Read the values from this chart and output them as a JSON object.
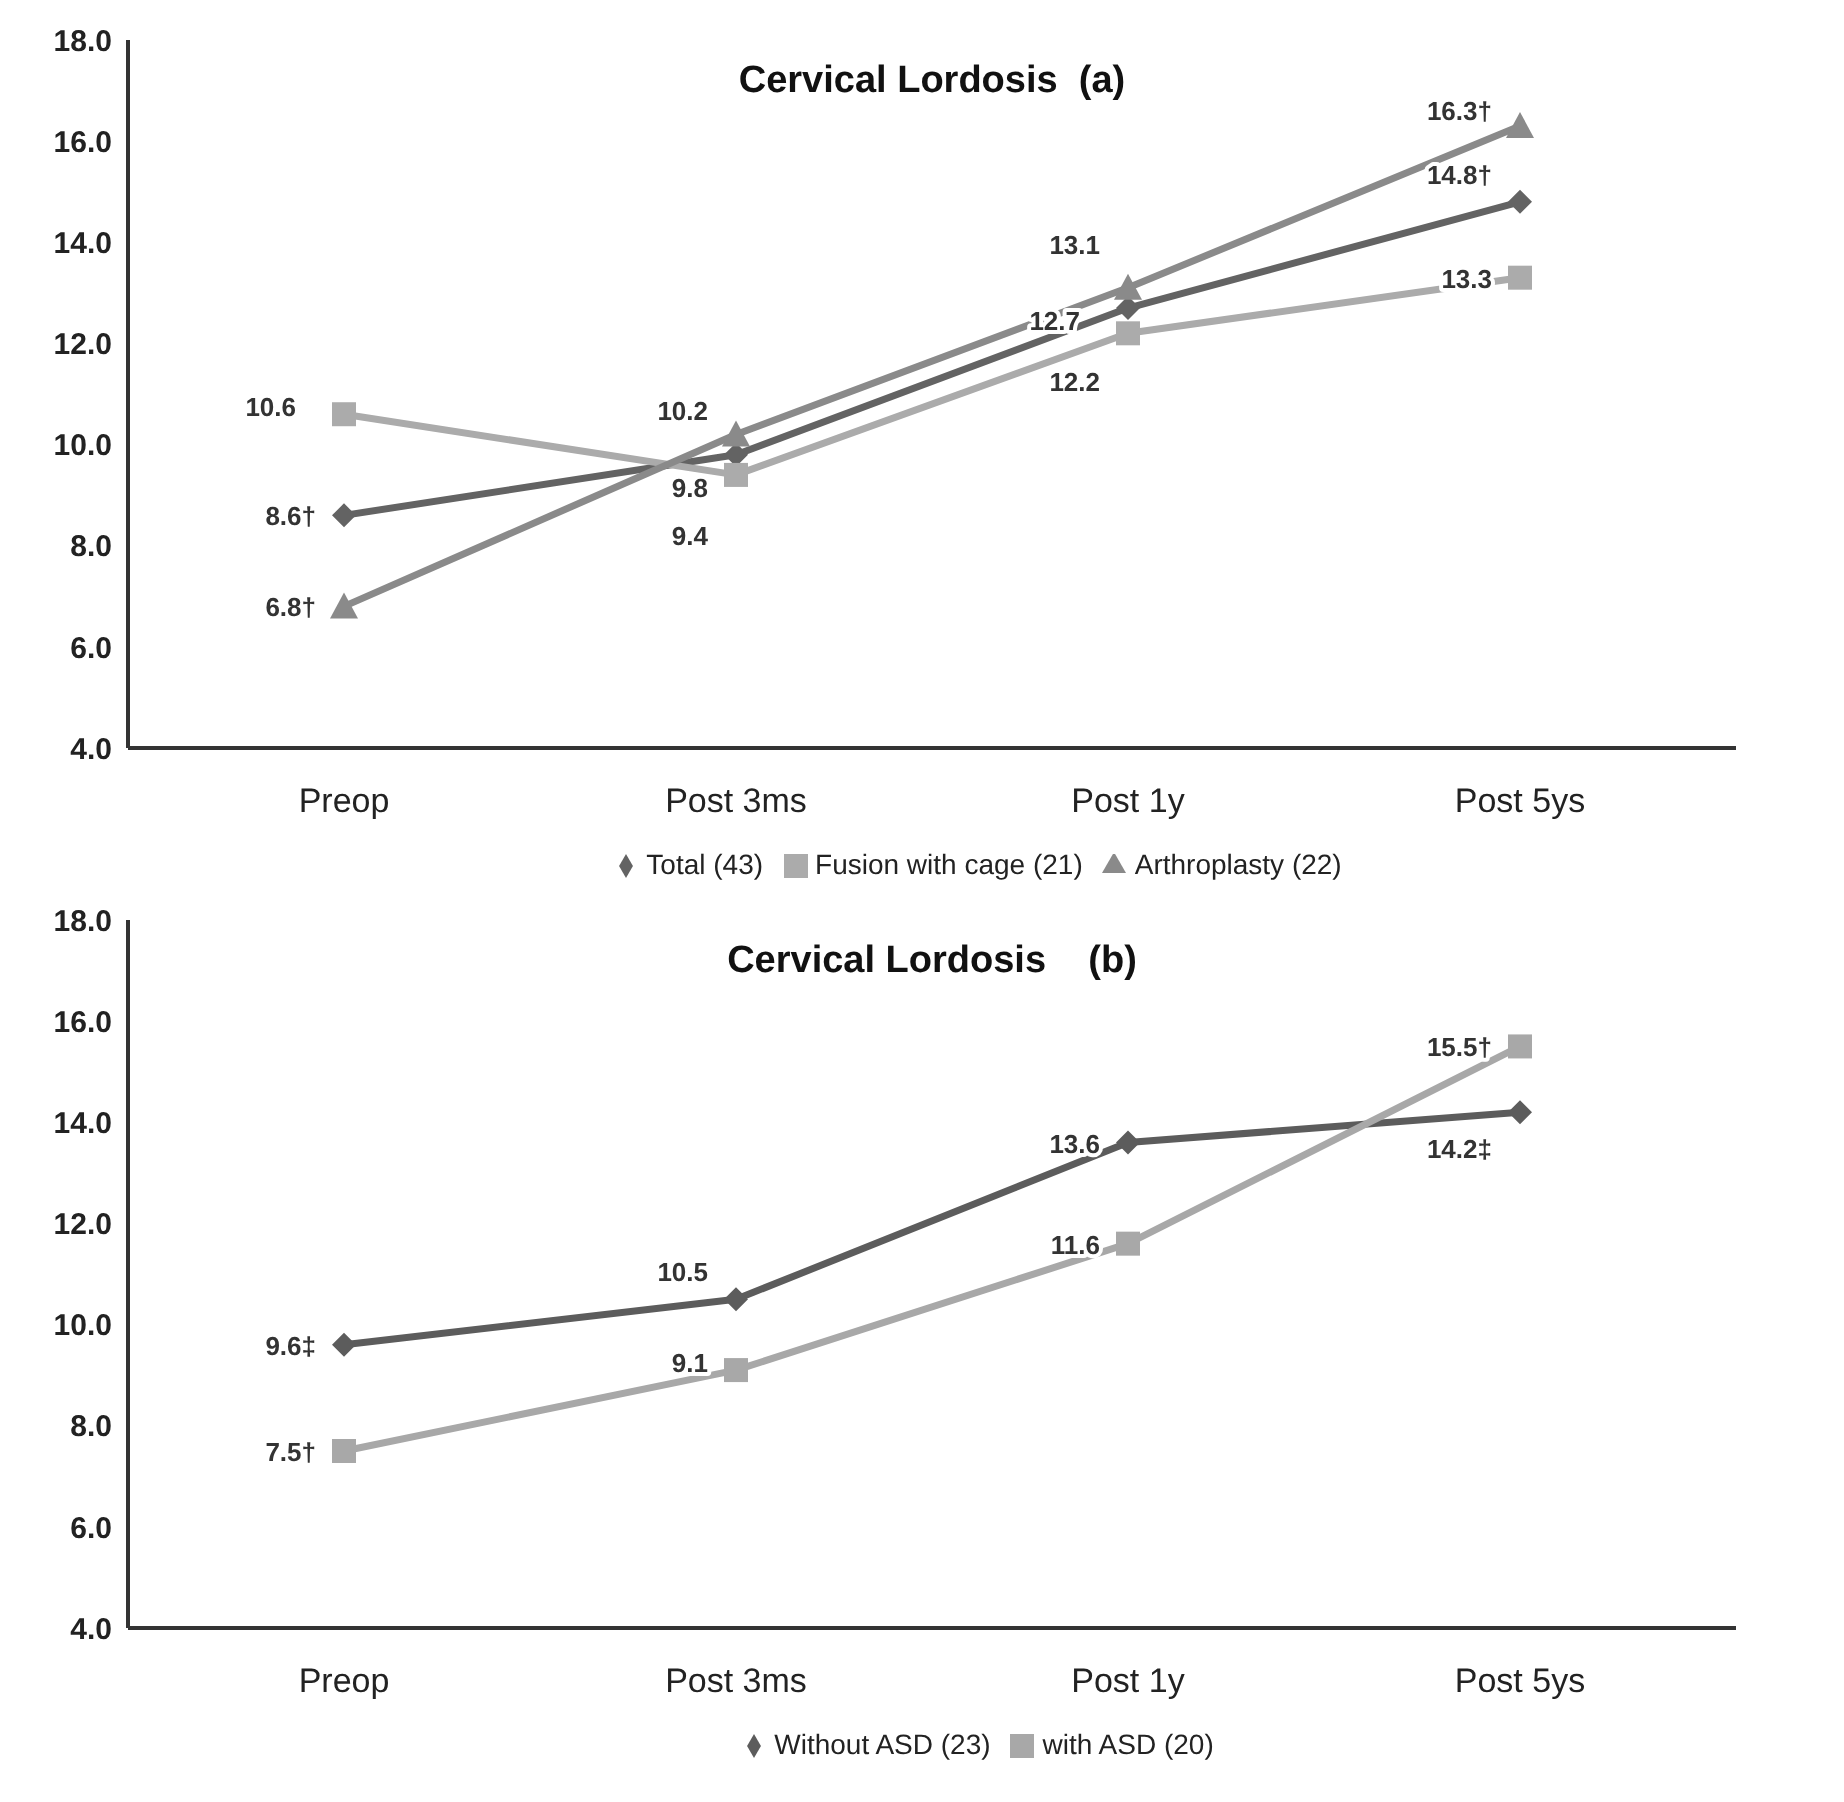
{
  "chart_data": [
    {
      "type": "line",
      "title": "Cervical Lordosis  (a)",
      "categories": [
        "Preop",
        "Post 3ms",
        "Post 1y",
        "Post 5ys"
      ],
      "ylim": [
        4,
        18
      ],
      "yticks": [
        {
          "value": 4,
          "label": "4.0"
        },
        {
          "value": 6,
          "label": "6.0"
        },
        {
          "value": 8,
          "label": "8.0"
        },
        {
          "value": 10,
          "label": "10.0"
        },
        {
          "value": 12,
          "label": "12.0"
        },
        {
          "value": 14,
          "label": "14.0"
        },
        {
          "value": 16,
          "label": "16.0"
        },
        {
          "value": 18,
          "label": "18.0"
        }
      ],
      "grid": false,
      "legend": "bottom",
      "series": [
        {
          "name": "Total (43)",
          "color": "#636363",
          "marker": "diamond",
          "values": [
            8.6,
            9.8,
            12.7,
            14.8
          ],
          "value_labels": [
            "8.6†",
            "9.8",
            "12.7",
            "14.8†"
          ]
        },
        {
          "name": "Fusion with cage (21)",
          "color": "#ababab",
          "marker": "square",
          "values": [
            10.6,
            9.4,
            12.2,
            13.3
          ],
          "value_labels": [
            "10.6",
            "9.4",
            "12.2",
            "13.3"
          ]
        },
        {
          "name": "Arthroplasty (22)",
          "color": "#8a8a8a",
          "marker": "triangle",
          "values": [
            6.8,
            10.2,
            13.1,
            16.3
          ],
          "value_labels": [
            "6.8†",
            "10.2",
            "13.1",
            "16.3†"
          ]
        }
      ]
    },
    {
      "type": "line",
      "title": "Cervical Lordosis    (b)",
      "categories": [
        "Preop",
        "Post 3ms",
        "Post 1y",
        "Post 5ys"
      ],
      "ylim": [
        4,
        18
      ],
      "yticks": [
        {
          "value": 4,
          "label": "4.0"
        },
        {
          "value": 6,
          "label": "6.0"
        },
        {
          "value": 8,
          "label": "8.0"
        },
        {
          "value": 10,
          "label": "10.0"
        },
        {
          "value": 12,
          "label": "12.0"
        },
        {
          "value": 14,
          "label": "14.0"
        },
        {
          "value": 16,
          "label": "16.0"
        },
        {
          "value": 18,
          "label": "18.0"
        }
      ],
      "grid": false,
      "legend": "bottom",
      "series": [
        {
          "name": "Without ASD (23)",
          "color": "#5c5c5c",
          "marker": "diamond",
          "values": [
            9.6,
            10.5,
            13.6,
            14.2
          ],
          "value_labels": [
            "9.6‡",
            "10.5",
            "13.6",
            "14.2‡"
          ]
        },
        {
          "name": "with ASD (20)",
          "color": "#a8a8a8",
          "marker": "square",
          "values": [
            7.5,
            9.1,
            11.6,
            15.5
          ],
          "value_labels": [
            "7.5†",
            "9.1",
            "11.6",
            "15.5†"
          ]
        }
      ]
    }
  ]
}
